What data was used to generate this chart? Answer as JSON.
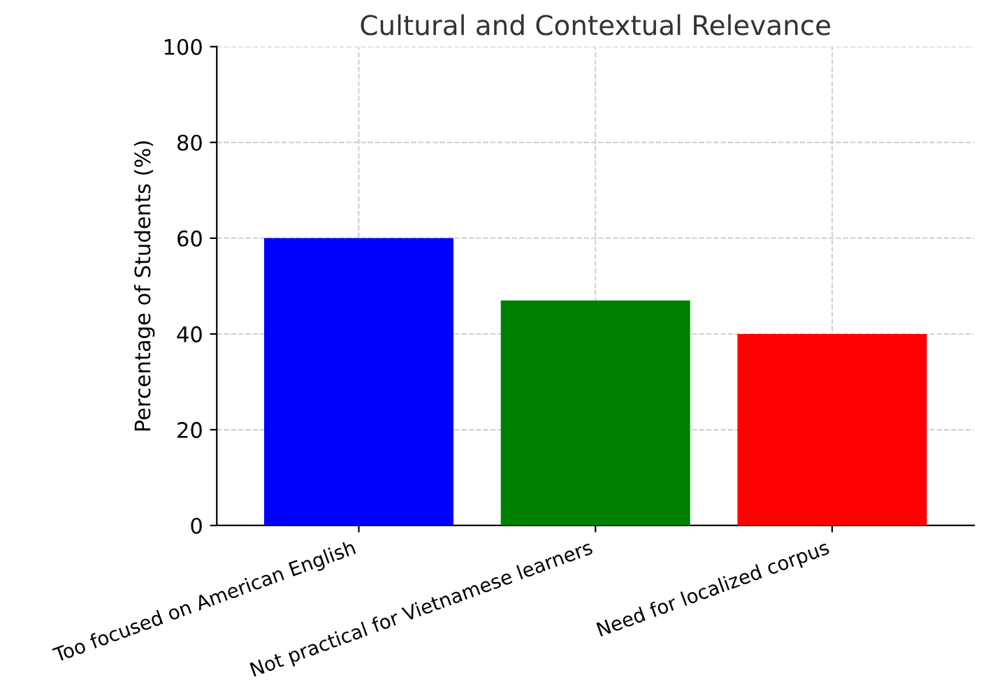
{
  "chart_data": {
    "type": "bar",
    "title": "Cultural and Contextual Relevance",
    "ylabel": "Percentage of Students (%)",
    "categories": [
      "Too focused on American English",
      "Not practical for Vietnamese learners",
      "Need for localized corpus"
    ],
    "values": [
      60,
      47,
      40
    ],
    "colors": [
      "#0000ff",
      "#008000",
      "#ff0000"
    ],
    "ylim": [
      0,
      100
    ],
    "yticks": [
      0,
      20,
      40,
      60,
      80,
      100
    ],
    "grid": true
  }
}
